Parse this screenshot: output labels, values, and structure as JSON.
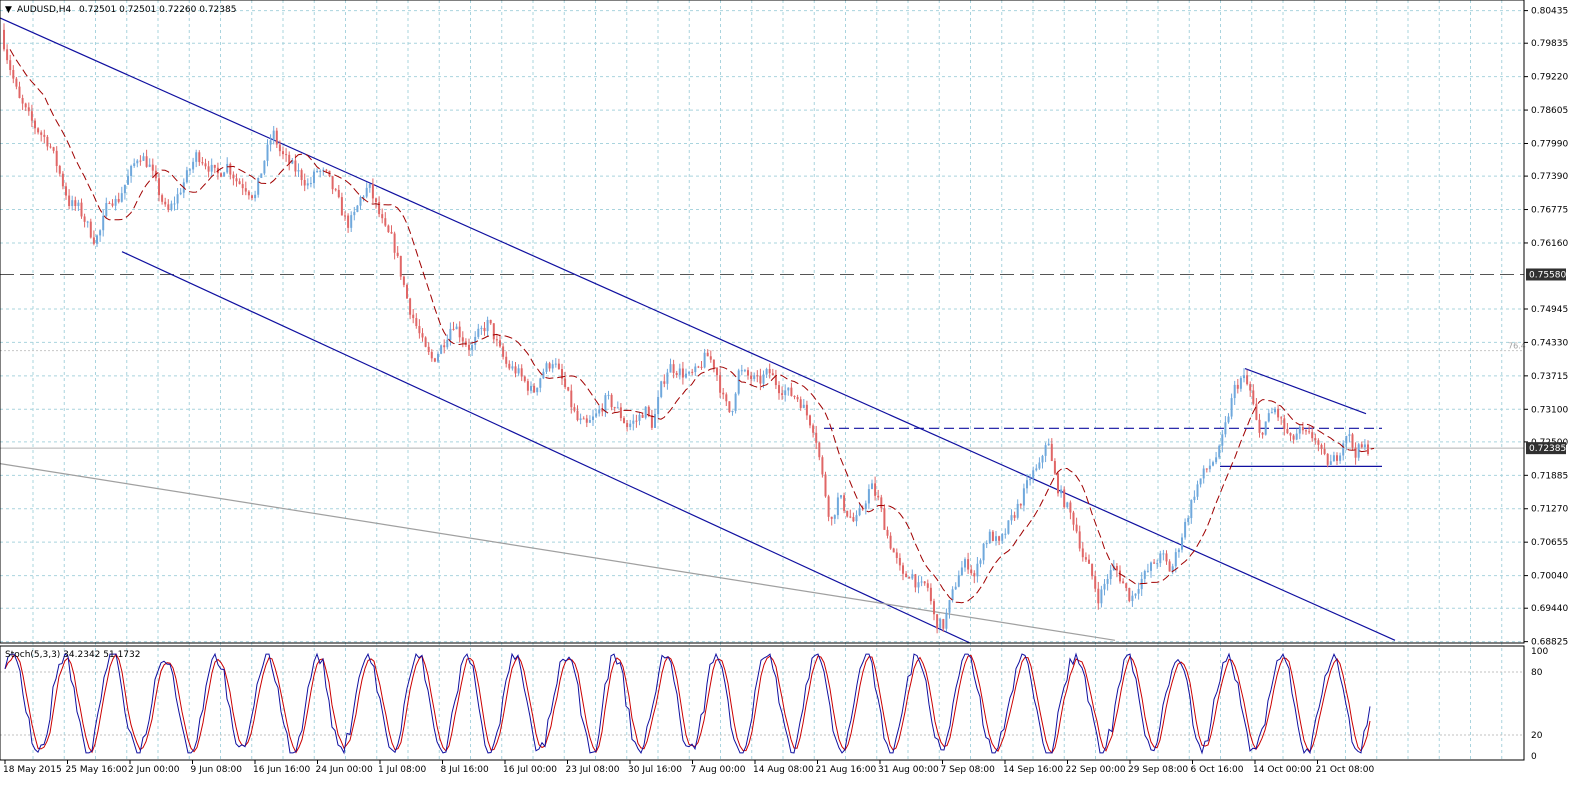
{
  "header": {
    "symbol_text": "AUDUSD,H4",
    "ohlc_text": "0.72501 0.72501 0.72260 0.72385",
    "stoch_text": "Stoch(5,3,3) 34.2342 51.1732"
  },
  "colors": {
    "up": "#6fa8dc",
    "down": "#e06666",
    "ma": "#a00000",
    "channel": "#1010a0",
    "grid": "#a9d4de",
    "stoch_main": "#1010a0",
    "stoch_signal": "#cc0000",
    "current_price_label_bg": "#303030",
    "level_label_bg": "#303030"
  },
  "chart_data": {
    "type": "candlestick",
    "symbol": "AUDUSD",
    "timeframe": "H4",
    "price_ticks": [
      0.80435,
      0.79835,
      0.7922,
      0.78605,
      0.7799,
      0.7739,
      0.76775,
      0.7616,
      0.7558,
      0.74945,
      0.7433,
      0.73715,
      0.731,
      0.725,
      0.72385,
      0.71885,
      0.7127,
      0.70655,
      0.7004,
      0.6944,
      0.68825
    ],
    "price_tick_labels": [
      "0.80435",
      "0.79835",
      "0.79220",
      "0.78605",
      "0.77990",
      "0.77390",
      "0.76775",
      "0.76160",
      "0.75580",
      "0.74945",
      "0.74330",
      "0.73715",
      "0.73100",
      "0.72500",
      "0.72385",
      "0.71885",
      "0.71270",
      "0.70655",
      "0.70040",
      "0.69440",
      "0.68825"
    ],
    "ylim": [
      0.688,
      0.8063
    ],
    "current_price": 0.72385,
    "current_price_label": "0.72385",
    "horizontal_level": 0.7558,
    "horizontal_level_label": "0.75580",
    "fib_label": "76.4",
    "fib_level": 0.7418,
    "time_labels": [
      "18 May 2015",
      "25 May 16:00",
      "2 Jun 00:00",
      "9 Jun 08:00",
      "16 Jun 16:00",
      "24 Jun 00:00",
      "1 Jul 08:00",
      "8 Jul 16:00",
      "16 Jul 00:00",
      "23 Jul 08:00",
      "30 Jul 16:00",
      "7 Aug 00:00",
      "14 Aug 08:00",
      "21 Aug 16:00",
      "31 Aug 00:00",
      "7 Sep 08:00",
      "14 Sep 16:00",
      "22 Sep 00:00",
      "29 Sep 08:00",
      "6 Oct 16:00",
      "14 Oct 00:00",
      "21 Oct 08:00"
    ],
    "anchors": [
      [
        0,
        0.804
      ],
      [
        10,
        0.796
      ],
      [
        22,
        0.788
      ],
      [
        38,
        0.783
      ],
      [
        52,
        0.78
      ],
      [
        60,
        0.776
      ],
      [
        72,
        0.769
      ],
      [
        82,
        0.768
      ],
      [
        90,
        0.765
      ],
      [
        98,
        0.762
      ],
      [
        104,
        0.764
      ],
      [
        112,
        0.77
      ],
      [
        120,
        0.769
      ],
      [
        132,
        0.774
      ],
      [
        142,
        0.778
      ],
      [
        152,
        0.776
      ],
      [
        160,
        0.772
      ],
      [
        170,
        0.767
      ],
      [
        180,
        0.77
      ],
      [
        190,
        0.774
      ],
      [
        200,
        0.778
      ],
      [
        210,
        0.776
      ],
      [
        220,
        0.774
      ],
      [
        230,
        0.776
      ],
      [
        240,
        0.773
      ],
      [
        248,
        0.772
      ],
      [
        258,
        0.77
      ],
      [
        266,
        0.776
      ],
      [
        276,
        0.782
      ],
      [
        284,
        0.778
      ],
      [
        294,
        0.776
      ],
      [
        304,
        0.774
      ],
      [
        312,
        0.772
      ],
      [
        320,
        0.775
      ],
      [
        330,
        0.774
      ],
      [
        340,
        0.77
      ],
      [
        350,
        0.765
      ],
      [
        356,
        0.766
      ],
      [
        364,
        0.77
      ],
      [
        372,
        0.772
      ],
      [
        380,
        0.768
      ],
      [
        388,
        0.764
      ],
      [
        396,
        0.762
      ],
      [
        404,
        0.756
      ],
      [
        412,
        0.75
      ],
      [
        420,
        0.746
      ],
      [
        428,
        0.742
      ],
      [
        436,
        0.74
      ],
      [
        446,
        0.743
      ],
      [
        456,
        0.747
      ],
      [
        466,
        0.744
      ],
      [
        474,
        0.742
      ],
      [
        482,
        0.745
      ],
      [
        492,
        0.747
      ],
      [
        500,
        0.743
      ],
      [
        510,
        0.739
      ],
      [
        520,
        0.738
      ],
      [
        528,
        0.736
      ],
      [
        536,
        0.734
      ],
      [
        546,
        0.738
      ],
      [
        556,
        0.74
      ],
      [
        566,
        0.736
      ],
      [
        574,
        0.732
      ],
      [
        580,
        0.729
      ],
      [
        590,
        0.728
      ],
      [
        600,
        0.73
      ],
      [
        610,
        0.733
      ],
      [
        620,
        0.731
      ],
      [
        630,
        0.728
      ],
      [
        640,
        0.729
      ],
      [
        648,
        0.731
      ],
      [
        656,
        0.728
      ],
      [
        664,
        0.735
      ],
      [
        672,
        0.739
      ],
      [
        682,
        0.738
      ],
      [
        692,
        0.737
      ],
      [
        700,
        0.738
      ],
      [
        710,
        0.741
      ],
      [
        718,
        0.739
      ],
      [
        726,
        0.733
      ],
      [
        734,
        0.73
      ],
      [
        742,
        0.738
      ],
      [
        752,
        0.737
      ],
      [
        762,
        0.736
      ],
      [
        772,
        0.738
      ],
      [
        782,
        0.735
      ],
      [
        792,
        0.734
      ],
      [
        802,
        0.733
      ],
      [
        810,
        0.73
      ],
      [
        818,
        0.727
      ],
      [
        826,
        0.718
      ],
      [
        834,
        0.71
      ],
      [
        842,
        0.715
      ],
      [
        850,
        0.712
      ],
      [
        858,
        0.71
      ],
      [
        866,
        0.713
      ],
      [
        874,
        0.717
      ],
      [
        882,
        0.714
      ],
      [
        890,
        0.708
      ],
      [
        898,
        0.704
      ],
      [
        906,
        0.7
      ],
      [
        914,
        0.701
      ],
      [
        922,
        0.698
      ],
      [
        930,
        0.699
      ],
      [
        938,
        0.692
      ],
      [
        946,
        0.691
      ],
      [
        954,
        0.696
      ],
      [
        962,
        0.701
      ],
      [
        970,
        0.703
      ],
      [
        978,
        0.7
      ],
      [
        986,
        0.706
      ],
      [
        994,
        0.708
      ],
      [
        1002,
        0.706
      ],
      [
        1010,
        0.709
      ],
      [
        1018,
        0.712
      ],
      [
        1026,
        0.715
      ],
      [
        1034,
        0.719
      ],
      [
        1042,
        0.72
      ],
      [
        1050,
        0.726
      ],
      [
        1056,
        0.72
      ],
      [
        1062,
        0.716
      ],
      [
        1070,
        0.713
      ],
      [
        1078,
        0.71
      ],
      [
        1086,
        0.704
      ],
      [
        1094,
        0.701
      ],
      [
        1102,
        0.696
      ],
      [
        1110,
        0.7
      ],
      [
        1118,
        0.702
      ],
      [
        1126,
        0.699
      ],
      [
        1134,
        0.696
      ],
      [
        1142,
        0.699
      ],
      [
        1150,
        0.701
      ],
      [
        1158,
        0.703
      ],
      [
        1166,
        0.704
      ],
      [
        1174,
        0.701
      ],
      [
        1182,
        0.706
      ],
      [
        1190,
        0.711
      ],
      [
        1198,
        0.716
      ],
      [
        1206,
        0.719
      ],
      [
        1214,
        0.721
      ],
      [
        1222,
        0.723
      ],
      [
        1230,
        0.729
      ],
      [
        1238,
        0.735
      ],
      [
        1246,
        0.737
      ],
      [
        1254,
        0.734
      ],
      [
        1262,
        0.726
      ],
      [
        1270,
        0.729
      ],
      [
        1278,
        0.731
      ],
      [
        1286,
        0.728
      ],
      [
        1294,
        0.725
      ],
      [
        1302,
        0.727
      ],
      [
        1310,
        0.726
      ],
      [
        1318,
        0.726
      ],
      [
        1326,
        0.722
      ],
      [
        1334,
        0.721
      ],
      [
        1342,
        0.723
      ],
      [
        1350,
        0.727
      ],
      [
        1358,
        0.723
      ],
      [
        1366,
        0.724
      ],
      [
        1369,
        0.7238
      ]
    ],
    "annotation_lines": [
      {
        "name": "channel-upper",
        "points": [
          [
            0,
            0.803
          ],
          [
            1395,
            0.6885
          ]
        ]
      },
      {
        "name": "channel-lower",
        "points": [
          [
            122,
            0.76
          ],
          [
            970,
            0.688
          ]
        ]
      },
      {
        "name": "long-term-trendline",
        "points": [
          [
            0,
            0.721
          ],
          [
            1115,
            0.6885
          ]
        ]
      },
      {
        "name": "wedge-upper",
        "points": [
          [
            1245,
            0.7385
          ],
          [
            1366,
            0.7302
          ]
        ]
      },
      {
        "name": "support-line",
        "points": [
          [
            1220,
            0.7205
          ],
          [
            1382,
            0.7205
          ]
        ]
      },
      {
        "name": "resistance-dashed",
        "points": [
          [
            824,
            0.7275
          ],
          [
            1382,
            0.7275
          ]
        ],
        "dashed": true
      }
    ],
    "stochastic": {
      "name": "Stoch(5,3,3)",
      "k": 34.2342,
      "d": 51.1732,
      "ylim": [
        0,
        100
      ],
      "tick_labels": [
        "100",
        "80",
        "20",
        "0"
      ],
      "tick_values": [
        100,
        80,
        20,
        0
      ]
    }
  }
}
